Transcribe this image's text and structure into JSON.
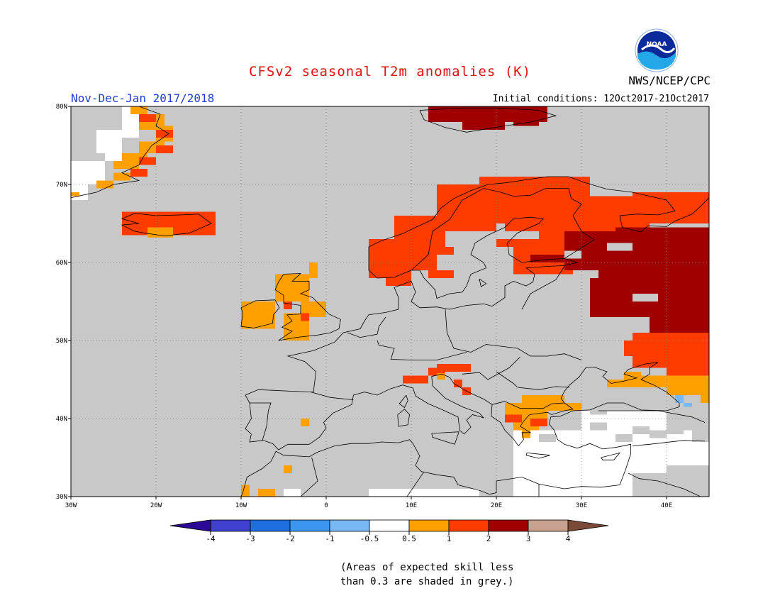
{
  "header": {
    "title": "CFSv2 seasonal T2m anomalies (K)",
    "title_color": "#e01010",
    "period": "Nov-Dec-Jan 2017/2018",
    "period_color": "#1e3ecc",
    "agency": "NWS/NCEP/CPC",
    "initial_conditions": "Initial conditions: 12Oct2017-21Oct2017",
    "logo_text": "NOAA"
  },
  "map": {
    "projection": "lat-lon",
    "lon_range": [
      -30,
      45
    ],
    "lat_range": [
      30,
      80
    ],
    "lon_ticks": [
      "30W",
      "20W",
      "10W",
      "0",
      "10E",
      "20E",
      "30E",
      "40E"
    ],
    "lat_ticks": [
      "80N",
      "70N",
      "60N",
      "50N",
      "40N",
      "30N"
    ],
    "grid": "dotted",
    "background_color": "#c8c8c8",
    "anomaly_regions": [
      {
        "area": "Scandinavia / northwestern Russia",
        "category": "1 to 2"
      },
      {
        "area": "Western Russia",
        "category": "2 to 3"
      },
      {
        "area": "Southern Russia / Ukraine",
        "category": "1 to 2"
      },
      {
        "area": "Svalbard",
        "category": "2 to 3"
      },
      {
        "area": "Iceland",
        "category": "1 to 2"
      },
      {
        "area": "Greenland coast",
        "category": "0.5 to 2"
      },
      {
        "area": "British Isles",
        "category": "0.5 to 1"
      },
      {
        "area": "Northern Italy / Adriatic",
        "category": "1 to 2"
      },
      {
        "area": "Balkans / Greece",
        "category": "0.5 to 1"
      },
      {
        "area": "Turkey / North Africa",
        "category": "-0.5 to 0.5"
      },
      {
        "area": "Caucasus",
        "category": "-1 to -0.5"
      }
    ]
  },
  "colorbar": {
    "labels": [
      "-4",
      "-3",
      "-2",
      "-1",
      "-0.5",
      "0.5",
      "1",
      "2",
      "3",
      "4"
    ],
    "colors": [
      "#2a0a96",
      "#4040d0",
      "#1e6ee0",
      "#3c96f0",
      "#78b8f5",
      "#ffffff",
      "#ffa000",
      "#ff3c00",
      "#a00000",
      "#c8a090",
      "#7a4a38"
    ]
  },
  "footnote": {
    "line1": "(Areas of expected skill less",
    "line2": "than 0.3 are shaded in grey.)"
  }
}
